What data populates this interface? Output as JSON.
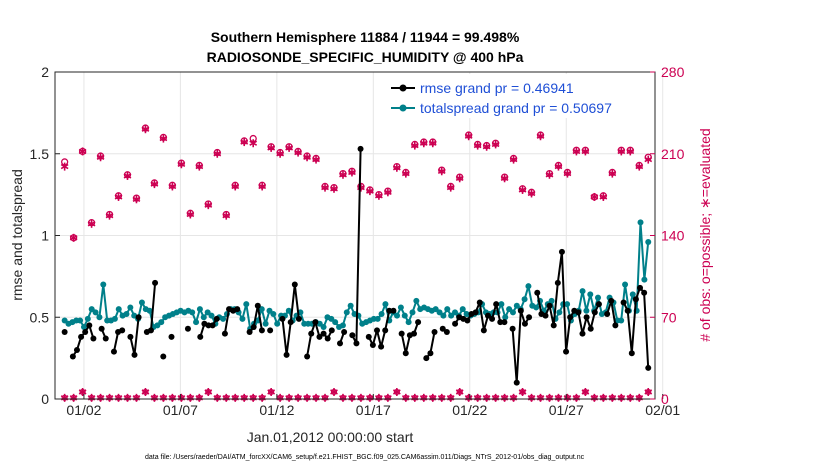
{
  "chart_data": {
    "type": "line",
    "title_line1": "Southern Hemisphere 11884 / 11944 = 99.498%",
    "title_line2": "RADIOSONDE_SPECIFIC_HUMIDITY @ 400 hPa",
    "ylabel": "rmse and totalspread",
    "ylabel_right": "# of obs: o=possible; ∗=evaluated",
    "xlabel": "Jan.01,2012 00:00:00 start",
    "footer": "data file: /Users/raeder/DAI/ATM_forcXX/CAM6_setup/f.e21.FHIST_BGC.f09_025.CAM6assim.011/Diags_NTrS_2012-01/obs_diag_output.nc",
    "ylim": [
      0,
      2
    ],
    "ylim_right": [
      0,
      280
    ],
    "xlim": [
      0.5,
      31.6
    ],
    "x_ticks": [
      {
        "x": 2,
        "label": "01/02"
      },
      {
        "x": 7,
        "label": "01/07"
      },
      {
        "x": 12,
        "label": "01/12"
      },
      {
        "x": 17,
        "label": "01/17"
      },
      {
        "x": 22,
        "label": "01/22"
      },
      {
        "x": 27,
        "label": "01/27"
      },
      {
        "x": 32,
        "label": "02/01"
      }
    ],
    "y_ticks": [
      "0",
      "0.5",
      "1",
      "1.5",
      "2"
    ],
    "y_ticks_right": [
      "0",
      "70",
      "140",
      "210",
      "280"
    ],
    "legend": [
      "rmse grand pr = 0.46941",
      "totalspread grand pr = 0.50697"
    ],
    "colors": {
      "rmse": "#000000",
      "spread": "#00808a",
      "obs": "#cc0052",
      "grid": "#e6e6e6"
    },
    "series": [
      {
        "name": "rmse",
        "values": [
          0.41,
          null,
          0.26,
          0.3,
          0.38,
          0.41,
          0.45,
          0.37,
          null,
          0.43,
          0.37,
          null,
          0.29,
          0.41,
          0.42,
          null,
          0.38,
          0.27,
          0.5,
          null,
          0.41,
          0.42,
          0.71,
          null,
          0.26,
          null,
          0.38,
          null,
          null,
          null,
          0.43,
          null,
          null,
          0.38,
          0.46,
          0.45,
          0.45,
          0.49,
          null,
          0.4,
          0.55,
          0.54,
          0.55,
          null,
          null,
          0.41,
          0.44,
          0.57,
          0.42,
          null,
          0.42,
          null,
          null,
          0.49,
          0.27,
          0.47,
          0.7,
          0.49,
          null,
          0.26,
          0.4,
          0.47,
          0.38,
          0.4,
          0.37,
          0.42,
          null,
          0.34,
          0.41,
          null,
          0.39,
          0.34,
          1.53,
          null,
          0.38,
          0.33,
          0.42,
          0.32,
          0.42,
          0.54,
          0.54,
          null,
          0.4,
          0.28,
          0.39,
          0.4,
          0.47,
          null,
          0.25,
          0.28,
          0.41,
          null,
          0.43,
          0.41,
          null,
          0.46,
          0.5,
          0.49,
          0.48,
          0.52,
          0.53,
          0.59,
          0.42,
          0.51,
          0.49,
          0.58,
          0.47,
          0.47,
          null,
          0.43,
          0.1,
          0.54,
          0.46,
          0.5,
          null,
          0.65,
          0.52,
          0.51,
          0.57,
          0.45,
          0.71,
          0.9,
          0.29,
          0.5,
          0.54,
          0.53,
          0.4,
          0.5,
          0.43,
          0.53,
          0.58,
          null,
          0.52,
          0.6,
          0.45,
          null,
          0.59,
          0.54,
          0.28,
          0.61,
          0.68,
          0.65,
          0.19
        ]
      },
      {
        "name": "totalspread",
        "values": [
          0.48,
          0.46,
          0.47,
          0.48,
          0.48,
          0.44,
          0.49,
          0.55,
          0.53,
          0.5,
          0.7,
          0.48,
          0.48,
          0.49,
          0.55,
          0.51,
          0.52,
          0.56,
          0.51,
          0.49,
          0.59,
          0.55,
          0.54,
          0.44,
          0.45,
          0.47,
          0.5,
          0.51,
          0.52,
          0.53,
          0.54,
          0.53,
          0.54,
          0.53,
          0.47,
          0.55,
          0.5,
          0.53,
          0.51,
          0.46,
          0.5,
          0.49,
          0.52,
          0.55,
          0.55,
          0.53,
          0.49,
          0.58,
          0.43,
          0.46,
          0.48,
          0.55,
          0.46,
          0.54,
          0.52,
          0.46,
          0.51,
          0.51,
          0.54,
          0.48,
          0.51,
          0.53,
          0.46,
          0.46,
          0.46,
          0.47,
          0.46,
          0.44,
          0.5,
          0.49,
          0.47,
          0.44,
          0.45,
          0.53,
          0.57,
          0.52,
          0.51,
          0.46,
          0.47,
          0.48,
          0.49,
          0.49,
          0.52,
          0.58,
          0.48,
          0.53,
          0.51,
          0.56,
          0.51,
          0.47,
          0.53,
          0.6,
          0.55,
          0.56,
          0.55,
          0.54,
          0.55,
          0.53,
          0.51,
          0.55,
          0.51,
          0.53,
          0.51,
          0.55,
          0.52,
          0.51,
          0.52,
          0.53,
          0.58,
          0.53,
          0.52,
          0.53,
          0.53,
          0.58,
          0.5,
          0.55,
          0.53,
          0.57,
          0.55,
          0.61,
          0.69,
          0.57,
          0.56,
          0.6,
          0.54,
          0.58,
          0.6,
          0.49,
          0.53,
          0.58,
          0.58,
          0.48,
          0.52,
          0.54,
          0.66,
          0.54,
          0.64,
          0.54,
          0.62,
          0.52,
          0.53,
          0.62,
          0.59,
          0.48,
          0.48,
          0.7,
          0.54,
          0.64,
          0.54,
          1.08,
          0.73,
          0.96
        ]
      },
      {
        "name": "obs_possible",
        "axis": "right",
        "values": [
          203,
          138,
          212,
          151,
          208,
          158,
          174,
          192,
          172,
          232,
          185,
          224,
          183,
          202,
          159,
          200,
          167,
          211,
          158,
          183,
          221,
          223,
          183,
          216,
          211,
          216,
          212,
          208,
          206,
          182,
          181,
          193,
          195,
          182,
          179,
          175,
          178,
          199,
          194,
          218,
          220,
          220,
          196,
          182,
          190,
          226,
          218,
          217,
          219,
          190,
          206,
          180,
          177,
          226,
          193,
          200,
          194,
          213,
          213,
          173,
          174,
          194,
          213,
          213,
          200,
          207
        ]
      },
      {
        "name": "obs_evaluated",
        "axis": "right",
        "values": [
          199,
          138,
          212,
          150,
          207,
          157,
          173,
          191,
          171,
          231,
          184,
          223,
          182,
          201,
          158,
          199,
          166,
          210,
          157,
          182,
          220,
          219,
          182,
          215,
          210,
          215,
          211,
          207,
          205,
          181,
          180,
          192,
          194,
          181,
          178,
          174,
          177,
          198,
          193,
          217,
          219,
          219,
          195,
          181,
          189,
          225,
          217,
          216,
          218,
          189,
          205,
          179,
          176,
          225,
          192,
          199,
          193,
          212,
          212,
          173,
          173,
          193,
          212,
          212,
          199,
          205
        ]
      }
    ]
  }
}
